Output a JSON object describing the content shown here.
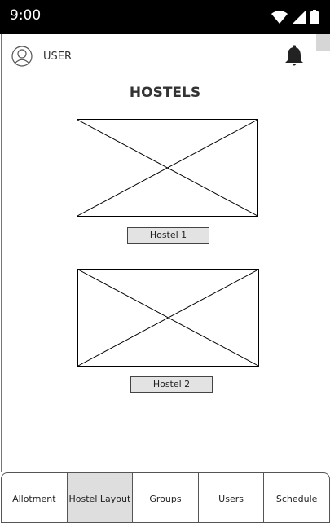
{
  "status_bar": {
    "time": "9:00",
    "icons": [
      "wifi-icon",
      "signal-icon",
      "battery-icon"
    ]
  },
  "header": {
    "user_label": "USER",
    "avatar_icon": "user-avatar-icon",
    "notification_icon": "bell-icon"
  },
  "page": {
    "title": "HOSTELS"
  },
  "hostels": [
    {
      "image": "image-placeholder",
      "label": "Hostel 1"
    },
    {
      "image": "image-placeholder",
      "label": "Hostel 2"
    }
  ],
  "bottom_nav": {
    "tabs": [
      {
        "label": "Allotment",
        "active": false
      },
      {
        "label": "Hostel Layout",
        "active": true
      },
      {
        "label": "Groups",
        "active": false
      },
      {
        "label": "Users",
        "active": false
      },
      {
        "label": "Schedule",
        "active": false
      }
    ]
  },
  "colors": {
    "status_bar_bg": "#000000",
    "active_tab_bg": "#dedede",
    "button_bg": "#e3e3e3"
  }
}
